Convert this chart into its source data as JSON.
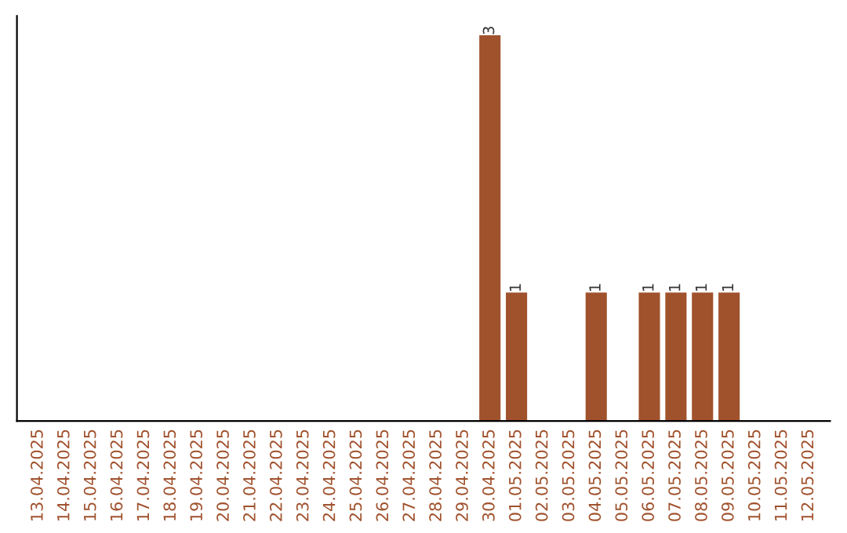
{
  "chart_data": {
    "type": "bar",
    "categories": [
      "13.04.2025",
      "14.04.2025",
      "15.04.2025",
      "16.04.2025",
      "17.04.2025",
      "18.04.2025",
      "19.04.2025",
      "20.04.2025",
      "21.04.2025",
      "22.04.2025",
      "23.04.2025",
      "24.04.2025",
      "25.04.2025",
      "26.04.2025",
      "27.04.2025",
      "28.04.2025",
      "29.04.2025",
      "30.04.2025",
      "01.05.2025",
      "02.05.2025",
      "03.05.2025",
      "04.05.2025",
      "05.05.2025",
      "06.05.2025",
      "07.05.2025",
      "08.05.2025",
      "09.05.2025",
      "10.05.2025",
      "11.05.2025",
      "12.05.2025"
    ],
    "values": [
      null,
      null,
      null,
      null,
      null,
      null,
      null,
      null,
      null,
      null,
      null,
      null,
      null,
      null,
      null,
      null,
      null,
      3,
      1,
      null,
      null,
      1,
      null,
      1,
      1,
      1,
      1,
      null,
      null,
      null
    ],
    "value_labels": [
      null,
      null,
      null,
      null,
      null,
      null,
      null,
      null,
      null,
      null,
      null,
      null,
      null,
      null,
      null,
      null,
      null,
      "3",
      "1",
      null,
      null,
      "1",
      null,
      "1",
      "1",
      "1",
      "1",
      null,
      null,
      null
    ],
    "color": "#a0522d",
    "tick_labels": "x",
    "grid": false,
    "legend": false
  }
}
